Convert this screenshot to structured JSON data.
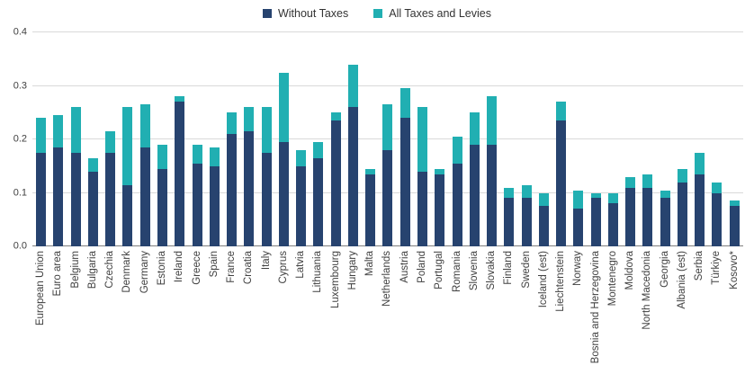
{
  "legend": {
    "without_taxes_label": "Without Taxes",
    "all_taxes_label": "All Taxes and Levies"
  },
  "colors": {
    "without_taxes": "#27436f",
    "all_taxes_levies": "#21afb2",
    "gridline": "#d9d9d9",
    "axis_line": "#7f7f7f",
    "text": "#404040"
  },
  "chart_data": {
    "type": "bar",
    "stacked": true,
    "title": "",
    "xlabel": "",
    "ylabel": "",
    "ylim": [
      0,
      0.4
    ],
    "yticks": [
      "0.0",
      "0.1",
      "0.2",
      "0.3",
      "0.4"
    ],
    "grid": true,
    "legend_position": "top-center",
    "categories": [
      "European Union",
      "Euro area",
      "Belgium",
      "Bulgaria",
      "Czechia",
      "Denmark",
      "Germany",
      "Estonia",
      "Ireland",
      "Greece",
      "Spain",
      "France",
      "Croatia",
      "Italy",
      "Cyprus",
      "Latvia",
      "Lithuania",
      "Luxembourg",
      "Hungary",
      "Malta",
      "Netherlands",
      "Austria",
      "Poland",
      "Portugal",
      "Romania",
      "Slovenia",
      "Slovakia",
      "Finland",
      "Sweden",
      "Iceland (est)",
      "Liechtenstein",
      "Norway",
      "Bosnia and Herzegovina",
      "Montenegro",
      "Moldova",
      "North Macedonia",
      "Georgia",
      "Albania (est)",
      "Serbia",
      "Türkiye",
      "Kosovo*"
    ],
    "series": [
      {
        "name": "Without Taxes",
        "role": "base",
        "color": "#27436f",
        "values": [
          0.175,
          0.185,
          0.175,
          0.14,
          0.175,
          0.115,
          0.185,
          0.145,
          0.27,
          0.155,
          0.15,
          0.21,
          0.215,
          0.175,
          0.195,
          0.15,
          0.165,
          0.235,
          0.26,
          0.135,
          0.18,
          0.24,
          0.14,
          0.135,
          0.155,
          0.19,
          0.19,
          0.09,
          0.09,
          0.075,
          0.235,
          0.07,
          0.09,
          0.08,
          0.11,
          0.11,
          0.09,
          0.12,
          0.135,
          0.1,
          0.075
        ]
      },
      {
        "name": "All Taxes and Levies",
        "role": "total",
        "color": "#21afb2",
        "values": [
          0.24,
          0.245,
          0.26,
          0.165,
          0.215,
          0.26,
          0.265,
          0.19,
          0.28,
          0.19,
          0.185,
          0.25,
          0.26,
          0.26,
          0.325,
          0.18,
          0.195,
          0.25,
          0.34,
          0.145,
          0.265,
          0.295,
          0.26,
          0.145,
          0.205,
          0.25,
          0.28,
          0.11,
          0.115,
          0.1,
          0.27,
          0.105,
          0.1,
          0.1,
          0.13,
          0.135,
          0.105,
          0.145,
          0.175,
          0.12,
          0.085
        ]
      }
    ],
    "note": "Stacked bars: 'Without Taxes' series gives the dark navy base height; 'All Taxes and Levies' series gives the full bar total; teal segment = total - base."
  }
}
